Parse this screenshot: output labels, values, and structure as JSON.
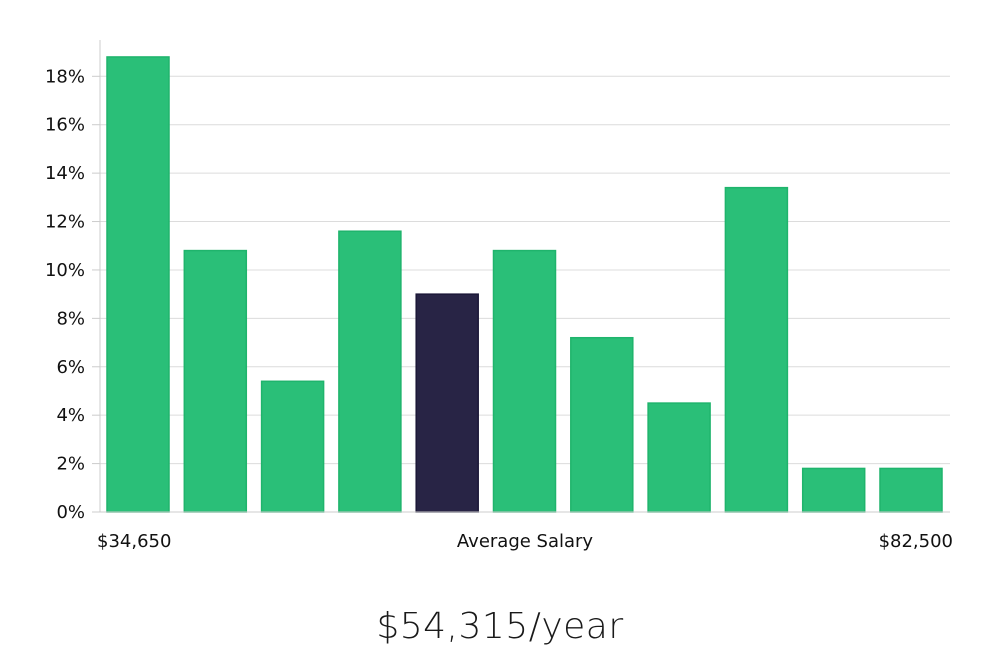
{
  "chart_data": {
    "type": "bar",
    "categories": [
      "1",
      "2",
      "3",
      "4",
      "5",
      "6",
      "7",
      "8",
      "9",
      "10",
      "11"
    ],
    "values": [
      18.8,
      10.8,
      5.4,
      11.6,
      9.0,
      10.8,
      7.2,
      4.5,
      13.4,
      1.8,
      1.8
    ],
    "highlight_index": 4,
    "y_ticks": [
      "0%",
      "2%",
      "4%",
      "6%",
      "8%",
      "10%",
      "12%",
      "14%",
      "16%",
      "18%"
    ],
    "ylim": [
      0,
      19.5
    ],
    "grid": true,
    "x_min_label": "$34,650",
    "x_center_label": "Average Salary",
    "x_max_label": "$82,500",
    "colors": {
      "bar": "#2abf78",
      "bar_stroke": "#1fb46c",
      "highlight": "#282445",
      "highlight_stroke": "#1c1838",
      "grid": "#dcdcdc",
      "axis": "#cccccc"
    }
  },
  "summary": {
    "average_salary": "$54,315/year"
  }
}
